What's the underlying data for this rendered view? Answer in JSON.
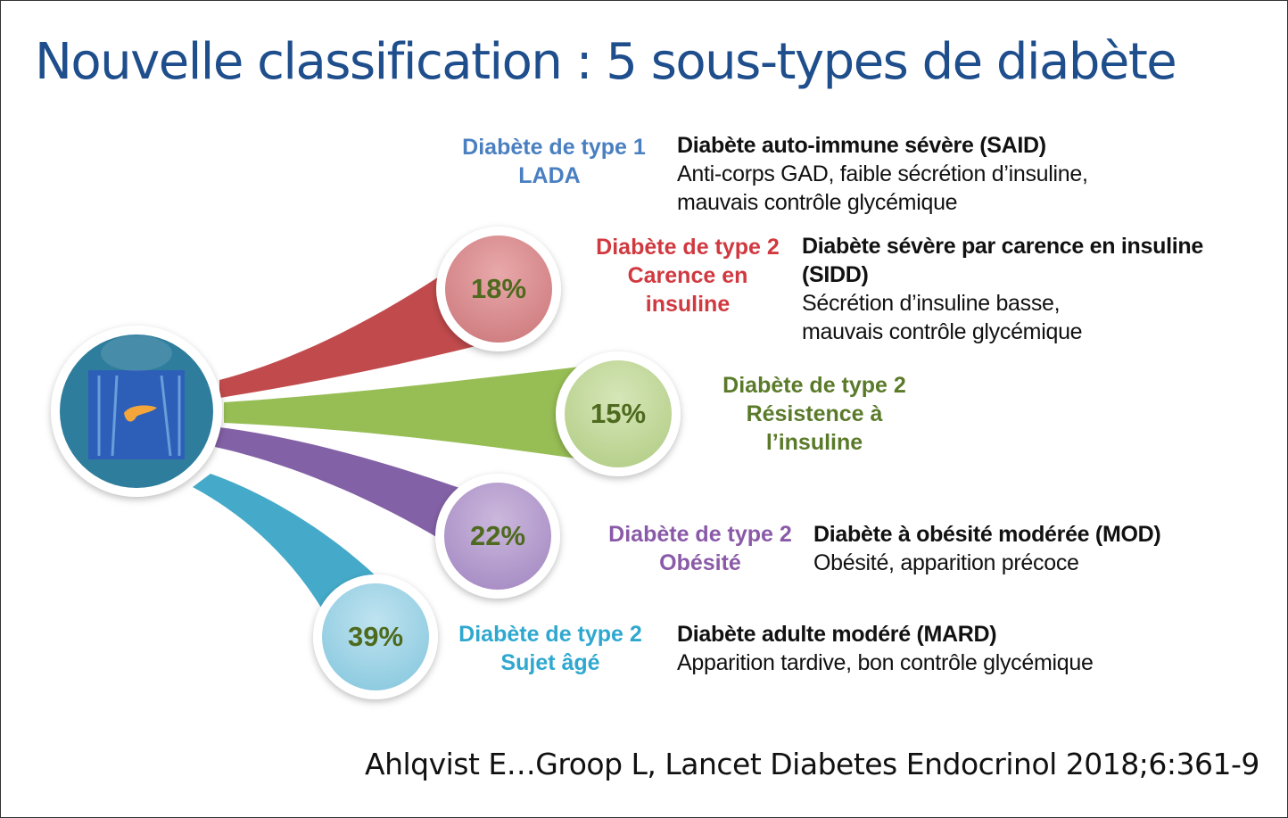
{
  "title": "Nouvelle classification : 5 sous-types de diabète",
  "groups": [
    {
      "label": [
        "Diabète de type 1",
        "LADA"
      ],
      "name": "Diabète auto-immune sévère (SAID)",
      "desc": [
        "Anti-corps GAD, faible sécrétion d’insuline,",
        "mauvais contrôle glycémique"
      ],
      "color": "#4a7fc1"
    },
    {
      "label": [
        "Diabète de type 2",
        "Carence en",
        "insuline"
      ],
      "percent": "18%",
      "name": "Diabète sévère par carence en insuline",
      "name2": "(SIDD)",
      "desc": [
        "Sécrétion d’insuline basse,",
        "mauvais contrôle glycémique"
      ],
      "color": "#d0393f"
    },
    {
      "label": [
        "Diabète de type 2",
        "Résistence à",
        "l’insuline"
      ],
      "percent": "15%",
      "color": "#5a7a2a"
    },
    {
      "label": [
        "Diabète de type 2",
        "Obésité"
      ],
      "percent": "22%",
      "name": "Diabète à obésité modérée (MOD)",
      "desc": [
        "Obésité, apparition précoce"
      ],
      "color": "#8a5aa8"
    },
    {
      "label": [
        "Diabète de type 2",
        "Sujet âgé"
      ],
      "percent": "39%",
      "name": "Diabète adulte modéré (MARD)",
      "desc": [
        "Apparition tardive, bon contrôle glycémique"
      ],
      "color": "#2fa8d0"
    }
  ],
  "center_icon": "pancreas-xray-icon",
  "citation": "Ahlqvist E…Groop L, Lancet Diabetes Endocrinol 2018;6:361-9"
}
